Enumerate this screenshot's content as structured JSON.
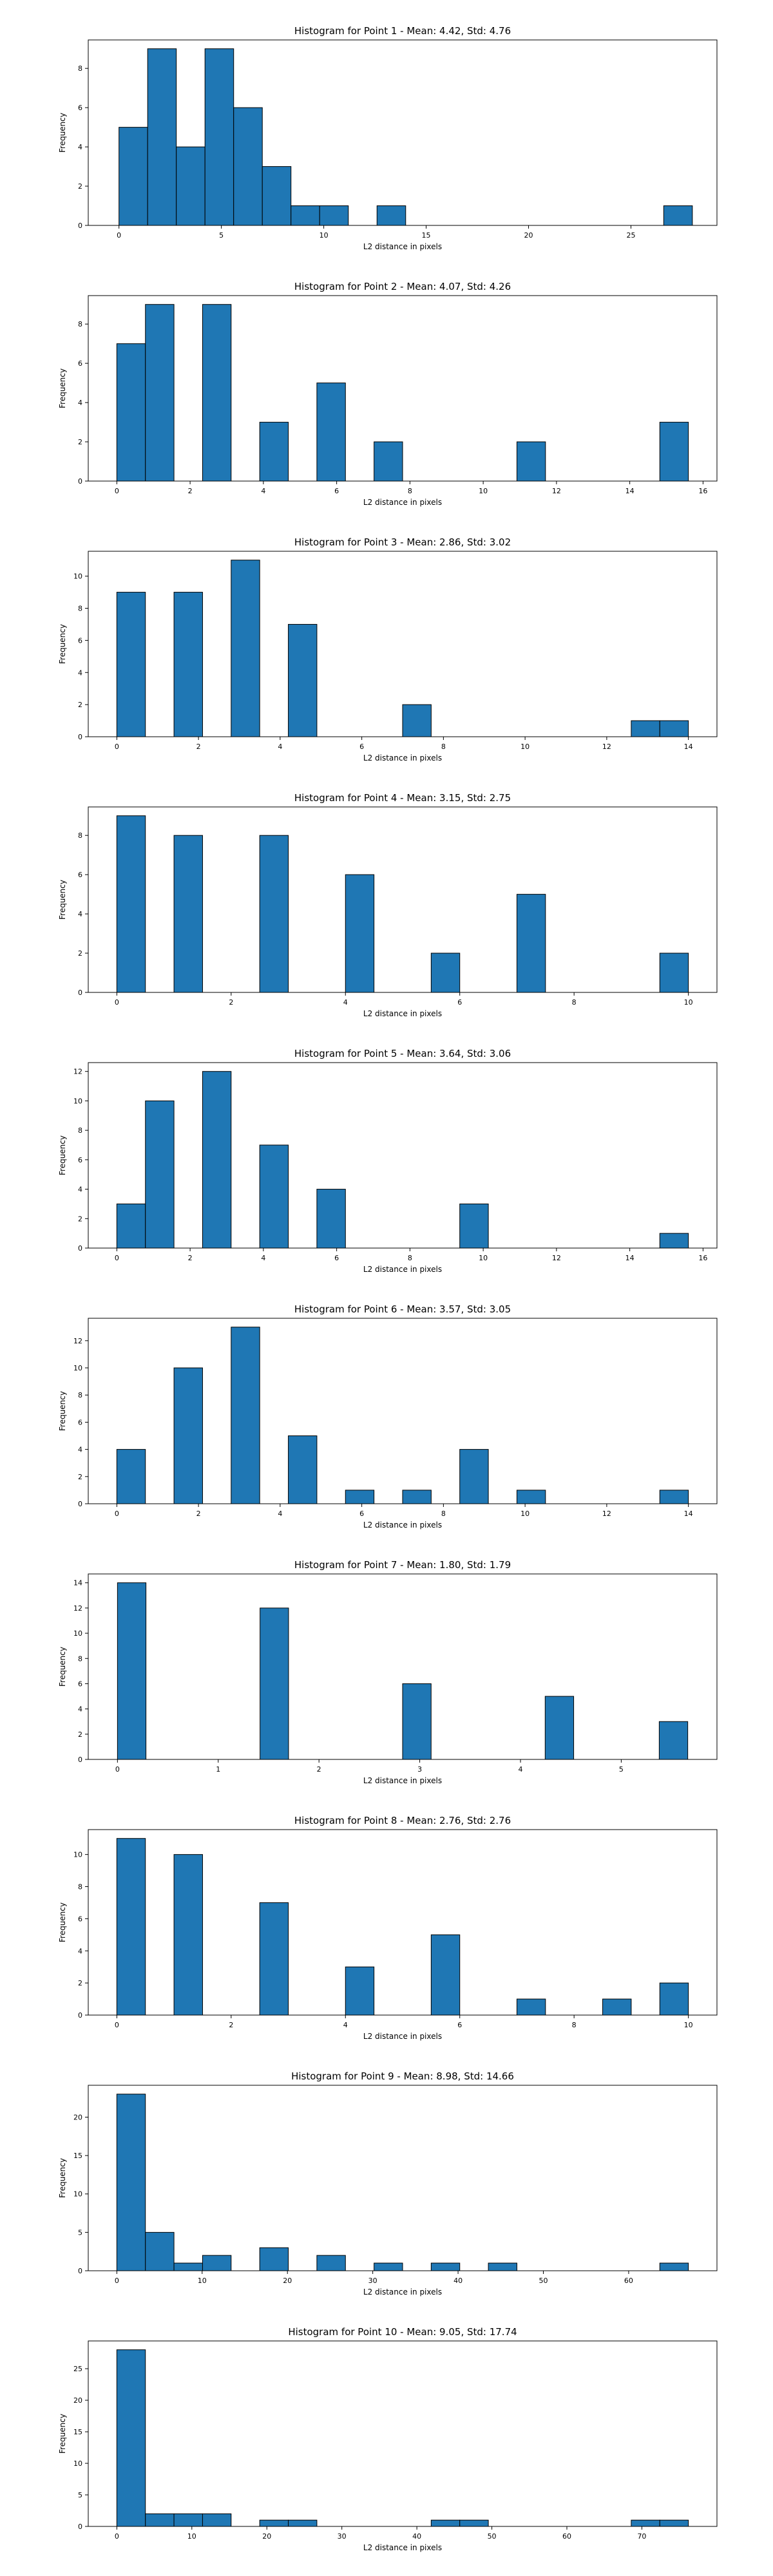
{
  "chart_data": [
    {
      "type": "bar",
      "title": "Histogram for Point 1 - Mean: 4.42, Std: 4.76",
      "xlabel": "L2 distance in pixels",
      "ylabel": "Frequency",
      "xlim": [
        -1.5,
        29.2
      ],
      "ylim": [
        0,
        9.45
      ],
      "xticks": [
        0,
        5,
        10,
        15,
        20,
        25
      ],
      "yticks": [
        0,
        2,
        4,
        6,
        8
      ],
      "bins": [
        {
          "x0": 0.0,
          "x1": 1.4,
          "count": 5
        },
        {
          "x0": 1.4,
          "x1": 2.8,
          "count": 9
        },
        {
          "x0": 2.8,
          "x1": 4.2,
          "count": 4
        },
        {
          "x0": 4.2,
          "x1": 5.6,
          "count": 9
        },
        {
          "x0": 5.6,
          "x1": 7.0,
          "count": 6
        },
        {
          "x0": 7.0,
          "x1": 8.4,
          "count": 3
        },
        {
          "x0": 8.4,
          "x1": 9.8,
          "count": 1
        },
        {
          "x0": 9.8,
          "x1": 11.2,
          "count": 1
        },
        {
          "x0": 12.6,
          "x1": 14.0,
          "count": 1
        },
        {
          "x0": 26.6,
          "x1": 28.0,
          "count": 1
        }
      ]
    },
    {
      "type": "bar",
      "title": "Histogram for Point 2 - Mean: 4.07, Std: 4.26",
      "xlabel": "L2 distance in pixels",
      "ylabel": "Frequency",
      "xlim": [
        -0.78,
        16.38
      ],
      "ylim": [
        0,
        9.45
      ],
      "xticks": [
        0,
        2,
        4,
        6,
        8,
        10,
        12,
        14,
        16
      ],
      "yticks": [
        0,
        2,
        4,
        6,
        8
      ],
      "bins": [
        {
          "x0": 0.0,
          "x1": 0.78,
          "count": 7
        },
        {
          "x0": 0.78,
          "x1": 1.56,
          "count": 9
        },
        {
          "x0": 2.34,
          "x1": 3.12,
          "count": 9
        },
        {
          "x0": 3.9,
          "x1": 4.68,
          "count": 3
        },
        {
          "x0": 5.46,
          "x1": 6.24,
          "count": 5
        },
        {
          "x0": 7.02,
          "x1": 7.8,
          "count": 2
        },
        {
          "x0": 10.92,
          "x1": 11.7,
          "count": 2
        },
        {
          "x0": 14.82,
          "x1": 15.6,
          "count": 3
        }
      ]
    },
    {
      "type": "bar",
      "title": "Histogram for Point 3 - Mean: 2.86, Std: 3.02",
      "xlabel": "L2 distance in pixels",
      "ylabel": "Frequency",
      "xlim": [
        -0.7,
        14.7
      ],
      "ylim": [
        0,
        11.55
      ],
      "xticks": [
        0,
        2,
        4,
        6,
        8,
        10,
        12,
        14
      ],
      "yticks": [
        0,
        2,
        4,
        6,
        8,
        10
      ],
      "bins": [
        {
          "x0": 0.0,
          "x1": 0.7,
          "count": 9
        },
        {
          "x0": 1.4,
          "x1": 2.1,
          "count": 9
        },
        {
          "x0": 2.8,
          "x1": 3.5,
          "count": 11
        },
        {
          "x0": 4.2,
          "x1": 4.9,
          "count": 7
        },
        {
          "x0": 7.0,
          "x1": 7.7,
          "count": 2
        },
        {
          "x0": 12.6,
          "x1": 13.3,
          "count": 1
        },
        {
          "x0": 13.3,
          "x1": 14.0,
          "count": 1
        }
      ]
    },
    {
      "type": "bar",
      "title": "Histogram for Point 4 - Mean: 3.15, Std: 2.75",
      "xlabel": "L2 distance in pixels",
      "ylabel": "Frequency",
      "xlim": [
        -0.5,
        10.5
      ],
      "ylim": [
        0,
        9.45
      ],
      "xticks": [
        0,
        2,
        4,
        6,
        8,
        10
      ],
      "yticks": [
        0,
        2,
        4,
        6,
        8
      ],
      "bins": [
        {
          "x0": 0.0,
          "x1": 0.5,
          "count": 9
        },
        {
          "x0": 1.0,
          "x1": 1.5,
          "count": 8
        },
        {
          "x0": 2.5,
          "x1": 3.0,
          "count": 8
        },
        {
          "x0": 4.0,
          "x1": 4.5,
          "count": 6
        },
        {
          "x0": 5.5,
          "x1": 6.0,
          "count": 2
        },
        {
          "x0": 7.0,
          "x1": 7.5,
          "count": 5
        },
        {
          "x0": 9.5,
          "x1": 10.0,
          "count": 2
        }
      ]
    },
    {
      "type": "bar",
      "title": "Histogram for Point 5 - Mean: 3.64, Std: 3.06",
      "xlabel": "L2 distance in pixels",
      "ylabel": "Frequency",
      "xlim": [
        -0.78,
        16.38
      ],
      "ylim": [
        0,
        12.6
      ],
      "xticks": [
        0,
        2,
        4,
        6,
        8,
        10,
        12,
        14,
        16
      ],
      "yticks": [
        0,
        2,
        4,
        6,
        8,
        10,
        12
      ],
      "bins": [
        {
          "x0": 0.0,
          "x1": 0.78,
          "count": 3
        },
        {
          "x0": 0.78,
          "x1": 1.56,
          "count": 10
        },
        {
          "x0": 2.34,
          "x1": 3.12,
          "count": 12
        },
        {
          "x0": 3.9,
          "x1": 4.68,
          "count": 7
        },
        {
          "x0": 5.46,
          "x1": 6.24,
          "count": 4
        },
        {
          "x0": 9.36,
          "x1": 10.14,
          "count": 3
        },
        {
          "x0": 14.82,
          "x1": 15.6,
          "count": 1
        }
      ]
    },
    {
      "type": "bar",
      "title": "Histogram for Point 6 - Mean: 3.57, Std: 3.05",
      "xlabel": "L2 distance in pixels",
      "ylabel": "Frequency",
      "xlim": [
        -0.7,
        14.7
      ],
      "ylim": [
        0,
        13.65
      ],
      "xticks": [
        0,
        2,
        4,
        6,
        8,
        10,
        12,
        14
      ],
      "yticks": [
        0,
        2,
        4,
        6,
        8,
        10,
        12
      ],
      "bins": [
        {
          "x0": 0.0,
          "x1": 0.7,
          "count": 4
        },
        {
          "x0": 1.4,
          "x1": 2.1,
          "count": 10
        },
        {
          "x0": 2.8,
          "x1": 3.5,
          "count": 13
        },
        {
          "x0": 4.2,
          "x1": 4.9,
          "count": 5
        },
        {
          "x0": 5.6,
          "x1": 6.3,
          "count": 1
        },
        {
          "x0": 7.0,
          "x1": 7.7,
          "count": 1
        },
        {
          "x0": 8.4,
          "x1": 9.1,
          "count": 4
        },
        {
          "x0": 9.8,
          "x1": 10.5,
          "count": 1
        },
        {
          "x0": 13.3,
          "x1": 14.0,
          "count": 1
        }
      ]
    },
    {
      "type": "bar",
      "title": "Histogram for Point 7 - Mean: 1.80, Std: 1.79",
      "xlabel": "L2 distance in pixels",
      "ylabel": "Frequency",
      "xlim": [
        -0.29,
        5.95
      ],
      "ylim": [
        0,
        14.7
      ],
      "xticks": [
        0,
        1,
        2,
        3,
        4,
        5
      ],
      "yticks": [
        0,
        2,
        4,
        6,
        8,
        10,
        12,
        14
      ],
      "bins": [
        {
          "x0": 0.0,
          "x1": 0.283,
          "count": 14
        },
        {
          "x0": 1.415,
          "x1": 1.698,
          "count": 12
        },
        {
          "x0": 2.83,
          "x1": 3.113,
          "count": 6
        },
        {
          "x0": 4.245,
          "x1": 4.528,
          "count": 5
        },
        {
          "x0": 5.377,
          "x1": 5.66,
          "count": 3
        }
      ]
    },
    {
      "type": "bar",
      "title": "Histogram for Point 8 - Mean: 2.76, Std: 2.76",
      "xlabel": "L2 distance in pixels",
      "ylabel": "Frequency",
      "xlim": [
        -0.5,
        10.5
      ],
      "ylim": [
        0,
        11.55
      ],
      "xticks": [
        0,
        2,
        4,
        6,
        8,
        10
      ],
      "yticks": [
        0,
        2,
        4,
        6,
        8,
        10
      ],
      "bins": [
        {
          "x0": 0.0,
          "x1": 0.5,
          "count": 11
        },
        {
          "x0": 1.0,
          "x1": 1.5,
          "count": 10
        },
        {
          "x0": 2.5,
          "x1": 3.0,
          "count": 7
        },
        {
          "x0": 4.0,
          "x1": 4.5,
          "count": 3
        },
        {
          "x0": 5.5,
          "x1": 6.0,
          "count": 5
        },
        {
          "x0": 7.0,
          "x1": 7.5,
          "count": 1
        },
        {
          "x0": 8.5,
          "x1": 9.0,
          "count": 1
        },
        {
          "x0": 9.5,
          "x1": 10.0,
          "count": 2
        }
      ]
    },
    {
      "type": "bar",
      "title": "Histogram for Point 9 - Mean: 8.98, Std: 14.66",
      "xlabel": "L2 distance in pixels",
      "ylabel": "Frequency",
      "xlim": [
        -3.35,
        70.35
      ],
      "ylim": [
        0,
        24.15
      ],
      "xticks": [
        0,
        10,
        20,
        30,
        40,
        50,
        60
      ],
      "yticks": [
        0,
        5,
        10,
        15,
        20
      ],
      "bins": [
        {
          "x0": 0.0,
          "x1": 3.35,
          "count": 23
        },
        {
          "x0": 3.35,
          "x1": 6.7,
          "count": 5
        },
        {
          "x0": 6.7,
          "x1": 10.05,
          "count": 1
        },
        {
          "x0": 10.05,
          "x1": 13.4,
          "count": 2
        },
        {
          "x0": 16.75,
          "x1": 20.1,
          "count": 3
        },
        {
          "x0": 23.45,
          "x1": 26.8,
          "count": 2
        },
        {
          "x0": 30.15,
          "x1": 33.5,
          "count": 1
        },
        {
          "x0": 36.85,
          "x1": 40.2,
          "count": 1
        },
        {
          "x0": 43.55,
          "x1": 46.9,
          "count": 1
        },
        {
          "x0": 63.65,
          "x1": 67.0,
          "count": 1
        }
      ]
    },
    {
      "type": "bar",
      "title": "Histogram for Point 10 - Mean: 9.05, Std: 17.74",
      "xlabel": "L2 distance in pixels",
      "ylabel": "Frequency",
      "xlim": [
        -3.81,
        80.01
      ],
      "ylim": [
        0,
        29.4
      ],
      "xticks": [
        0,
        10,
        20,
        30,
        40,
        50,
        60,
        70
      ],
      "yticks": [
        0,
        5,
        10,
        15,
        20,
        25
      ],
      "bins": [
        {
          "x0": 0.0,
          "x1": 3.81,
          "count": 28
        },
        {
          "x0": 3.81,
          "x1": 7.62,
          "count": 2
        },
        {
          "x0": 7.62,
          "x1": 11.43,
          "count": 2
        },
        {
          "x0": 11.43,
          "x1": 15.24,
          "count": 2
        },
        {
          "x0": 19.05,
          "x1": 22.86,
          "count": 1
        },
        {
          "x0": 22.86,
          "x1": 26.67,
          "count": 1
        },
        {
          "x0": 41.91,
          "x1": 45.72,
          "count": 1
        },
        {
          "x0": 45.72,
          "x1": 49.53,
          "count": 1
        },
        {
          "x0": 68.58,
          "x1": 72.39,
          "count": 1
        },
        {
          "x0": 72.39,
          "x1": 76.2,
          "count": 1
        }
      ]
    }
  ]
}
